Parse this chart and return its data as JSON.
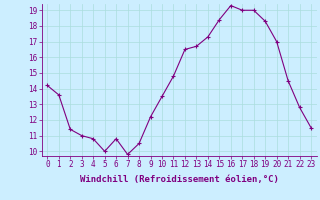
{
  "x": [
    0,
    1,
    2,
    3,
    4,
    5,
    6,
    7,
    8,
    9,
    10,
    11,
    12,
    13,
    14,
    15,
    16,
    17,
    18,
    19,
    20,
    21,
    22,
    23
  ],
  "y": [
    14.2,
    13.6,
    11.4,
    11.0,
    10.8,
    10.0,
    10.8,
    9.8,
    10.5,
    12.2,
    13.5,
    14.8,
    16.5,
    16.7,
    17.3,
    18.4,
    19.3,
    19.0,
    19.0,
    18.3,
    17.0,
    14.5,
    12.8,
    11.5
  ],
  "line_color": "#800080",
  "marker": "+",
  "marker_size": 3,
  "bg_color": "#cceeff",
  "grid_color": "#aadddd",
  "xlabel": "Windchill (Refroidissement éolien,°C)",
  "ylim": [
    9.7,
    19.4
  ],
  "xlim": [
    -0.5,
    23.5
  ],
  "yticks": [
    10,
    11,
    12,
    13,
    14,
    15,
    16,
    17,
    18,
    19
  ],
  "xticks": [
    0,
    1,
    2,
    3,
    4,
    5,
    6,
    7,
    8,
    9,
    10,
    11,
    12,
    13,
    14,
    15,
    16,
    17,
    18,
    19,
    20,
    21,
    22,
    23
  ],
  "tick_color": "#800080",
  "axis_color": "#800080",
  "label_fontsize": 6.5,
  "tick_fontsize": 5.5
}
